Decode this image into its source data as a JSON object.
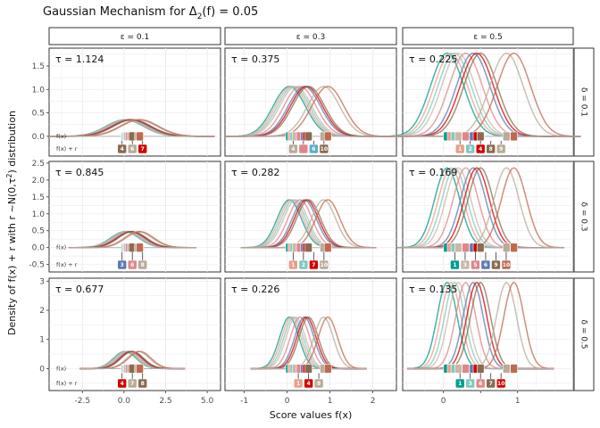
{
  "chart_data": {
    "type": "line",
    "title_prefix": "Gaussian Mechanism for ",
    "title_delta": "Δ",
    "title_sub": "2",
    "title_suffix": "(f) = 0.05",
    "xlabel": "Score values f(x)",
    "ylabel_prefix": "Density of f(x) + r with r ~N(0,τ",
    "ylabel_sup": "2",
    "ylabel_suffix": ") distribution",
    "col_strips": [
      "ε = 0.1",
      "ε = 0.3",
      "ε = 0.5"
    ],
    "row_strips": [
      "δ = 0.1",
      "δ = 0.3",
      "δ = 0.5"
    ],
    "row_label_fx": "f(x)",
    "row_label_fxr": "f(x) + r",
    "scores": [
      0.05,
      0.1,
      0.15,
      0.2,
      0.3,
      0.4,
      0.45,
      0.5,
      0.85,
      0.95
    ],
    "series_colors": [
      "#009e8c",
      "#e8a08a",
      "#7ec9c1",
      "#c9b8a8",
      "#e0868a",
      "#5b7ab0",
      "#d40000",
      "#8b6a50",
      "#b9ab9a",
      "#bf6a50"
    ],
    "columns": [
      {
        "xlim": [
          -4.5,
          5.8
        ],
        "xticks": [
          -2.5,
          0.0,
          2.5,
          5.0
        ],
        "xtick_labels": [
          "-2.5",
          "0.0",
          "2.5",
          "5.0"
        ]
      },
      {
        "xlim": [
          -1.45,
          2.55
        ],
        "xticks": [
          -1,
          0,
          1,
          2
        ],
        "xtick_labels": [
          "-1",
          "0",
          "1",
          "2"
        ]
      },
      {
        "xlim": [
          -0.55,
          1.75
        ],
        "xticks": [
          0,
          0.5,
          1
        ],
        "xtick_labels": [
          "0",
          "",
          "1"
        ]
      }
    ],
    "rows": [
      {
        "ylim": [
          -0.42,
          1.88
        ],
        "yticks": [
          0,
          0.5,
          1,
          1.5
        ],
        "ytick_labels": [
          "0.0",
          "0.5",
          "1.0",
          "1.5"
        ]
      },
      {
        "ylim": [
          -0.72,
          2.55
        ],
        "yticks": [
          -0.5,
          0,
          0.5,
          1,
          1.5,
          2,
          2.5
        ],
        "ytick_labels": [
          "-0.5",
          "0.0",
          "0.5",
          "1.0",
          "1.5",
          "2.0",
          "2.5"
        ]
      },
      {
        "ylim": [
          -0.75,
          3.1
        ],
        "yticks": [
          0,
          1,
          2,
          3
        ],
        "ytick_labels": [
          "0",
          "1",
          "2",
          "3"
        ]
      }
    ],
    "panels": [
      {
        "row": 0,
        "col": 0,
        "tau": 1.124,
        "tau_label": "τ = 1.124",
        "noisy_labels": [
          "4",
          "6",
          "7"
        ],
        "noisy_colors": [
          "#8b6a50",
          "#b9ab9a",
          "#d40000"
        ]
      },
      {
        "row": 0,
        "col": 1,
        "tau": 0.375,
        "tau_label": "τ = 0.375",
        "noisy_labels": [
          "4",
          "",
          "6",
          "10"
        ],
        "noisy_colors": [
          "#b9ab9a",
          "#e0868a",
          "#5ab0c8",
          "#8b6a50"
        ]
      },
      {
        "row": 0,
        "col": 2,
        "tau": 0.225,
        "tau_label": "τ = 0.225",
        "noisy_labels": [
          "1",
          "2",
          "4",
          "8",
          "9"
        ],
        "noisy_colors": [
          "#e8a08a",
          "#7ec9c1",
          "#d40000",
          "#8b6a50",
          "#b9ab9a"
        ]
      },
      {
        "row": 1,
        "col": 0,
        "tau": 0.845,
        "tau_label": "τ = 0.845",
        "noisy_labels": [
          "3",
          "6",
          "8"
        ],
        "noisy_colors": [
          "#5b7ab0",
          "#e0868a",
          "#b9ab9a"
        ]
      },
      {
        "row": 1,
        "col": 1,
        "tau": 0.282,
        "tau_label": "τ = 0.282",
        "noisy_labels": [
          "1",
          "2",
          "7",
          "10"
        ],
        "noisy_colors": [
          "#e8a08a",
          "#7ec9c1",
          "#d40000",
          "#b9ab9a"
        ]
      },
      {
        "row": 1,
        "col": 2,
        "tau": 0.169,
        "tau_label": "τ = 0.169",
        "noisy_labels": [
          "1",
          "3",
          "5",
          "6",
          "9",
          "10"
        ],
        "noisy_colors": [
          "#009e8c",
          "#c9b8a8",
          "#e0868a",
          "#5b7ab0",
          "#8b6a50",
          "#bf6a50"
        ]
      },
      {
        "row": 2,
        "col": 0,
        "tau": 0.677,
        "tau_label": "τ = 0.677",
        "noisy_labels": [
          "4",
          "7",
          "8"
        ],
        "noisy_colors": [
          "#d40000",
          "#b9ab9a",
          "#8b6a50"
        ]
      },
      {
        "row": 2,
        "col": 1,
        "tau": 0.226,
        "tau_label": "τ = 0.226",
        "noisy_labels": [
          "1",
          "4",
          "8"
        ],
        "noisy_colors": [
          "#e8a08a",
          "#d40000",
          "#b9ab9a"
        ]
      },
      {
        "row": 2,
        "col": 2,
        "tau": 0.135,
        "tau_label": "τ = 0.135",
        "noisy_labels": [
          "1",
          "3",
          "6",
          "7",
          "10"
        ],
        "noisy_colors": [
          "#009e8c",
          "#7ec9c1",
          "#e0868a",
          "#8b6a50",
          "#d40000"
        ]
      }
    ]
  }
}
